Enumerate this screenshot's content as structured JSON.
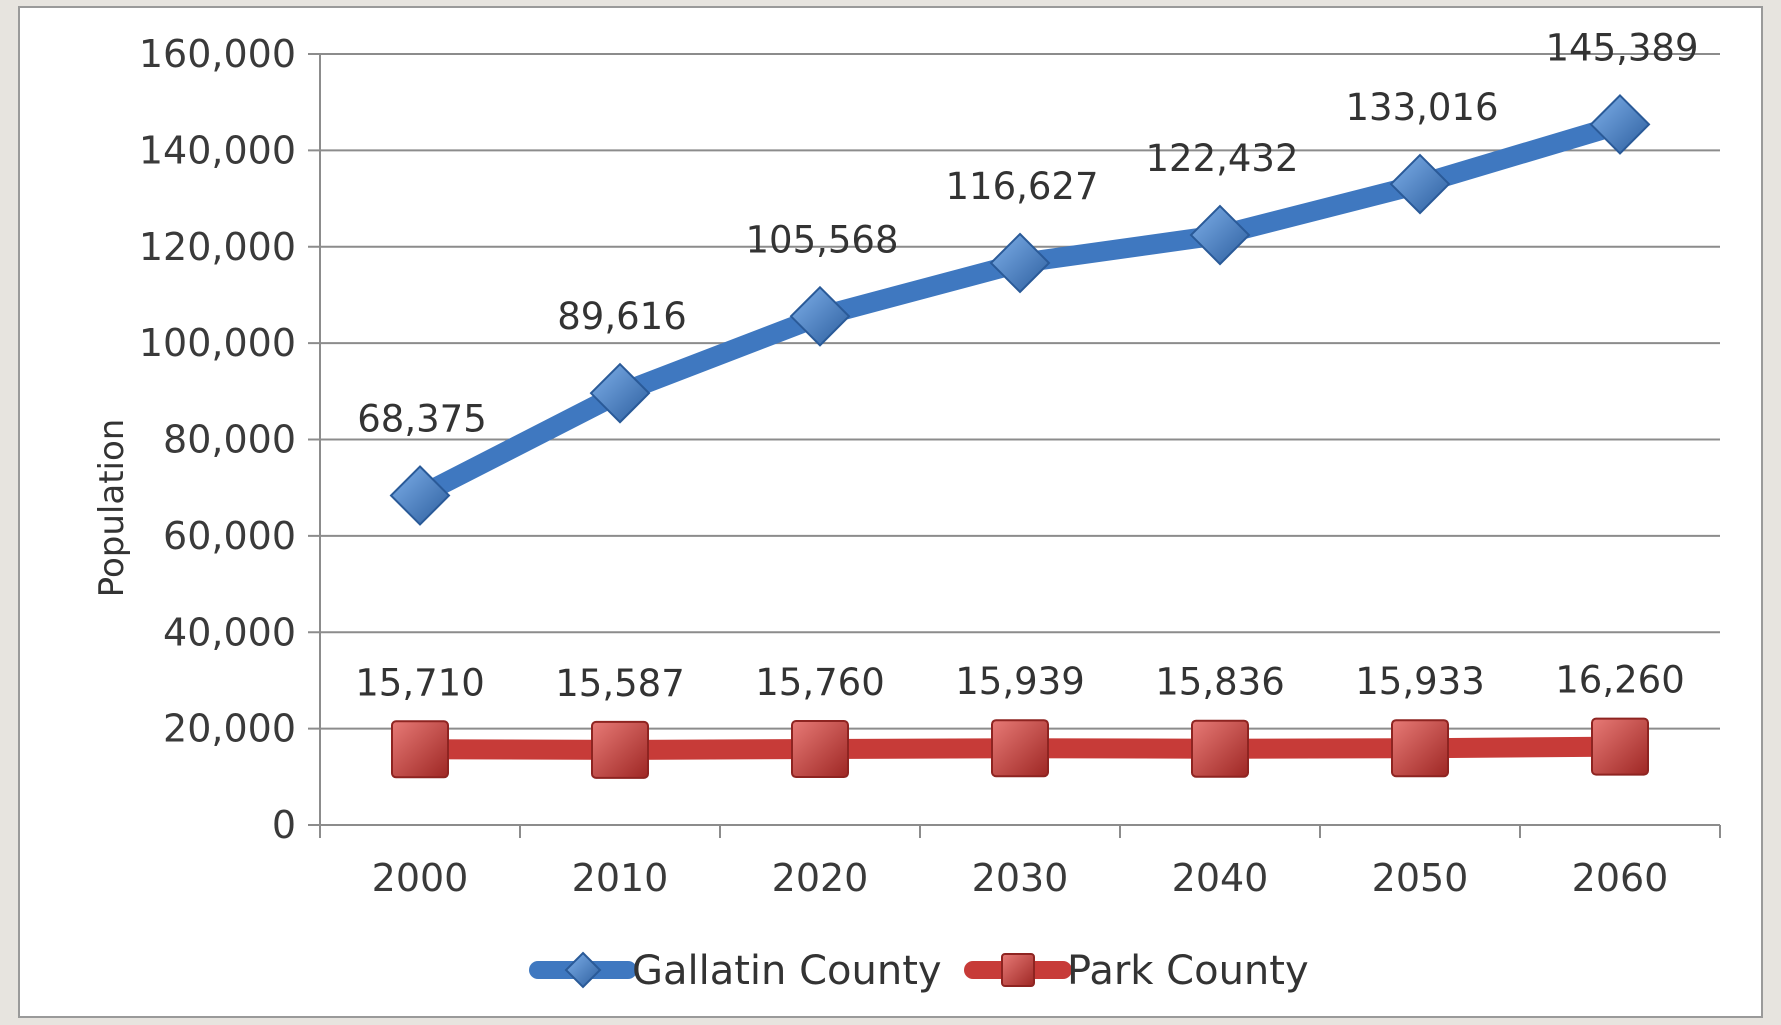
{
  "chart_data": {
    "type": "line",
    "title": "",
    "xlabel": "",
    "ylabel": "Population",
    "categories": [
      "2000",
      "2010",
      "2020",
      "2030",
      "2040",
      "2050",
      "2060"
    ],
    "ylim": [
      0,
      160000
    ],
    "yticks": [
      0,
      20000,
      40000,
      60000,
      80000,
      100000,
      120000,
      140000,
      160000
    ],
    "ytick_labels": [
      "0",
      "20,000",
      "40,000",
      "60,000",
      "80,000",
      "100,000",
      "120,000",
      "140,000",
      "160,000"
    ],
    "grid": true,
    "legend_position": "bottom",
    "series": [
      {
        "name": "Gallatin County",
        "color": "#3f78c0",
        "marker": "diamond",
        "values": [
          68375,
          89616,
          105568,
          116627,
          122432,
          133016,
          145389
        ],
        "labels": [
          "68,375",
          "89,616",
          "105,568",
          "116,627",
          "122,432",
          "133,016",
          "145,389"
        ]
      },
      {
        "name": "Park County",
        "color": "#c73b38",
        "marker": "square",
        "values": [
          15710,
          15587,
          15760,
          15939,
          15836,
          15933,
          16260
        ],
        "labels": [
          "15,710",
          "15,587",
          "15,760",
          "15,939",
          "15,836",
          "15,933",
          "16,260"
        ]
      }
    ]
  }
}
